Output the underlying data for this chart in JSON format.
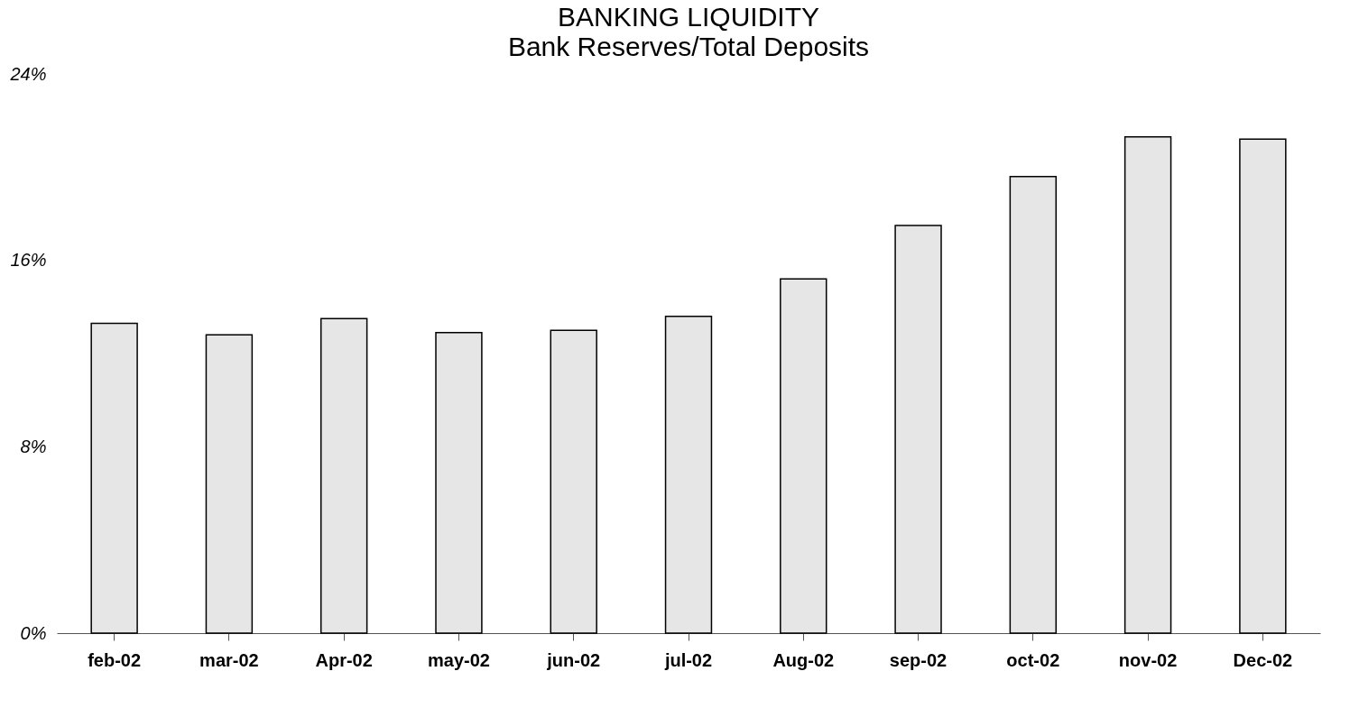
{
  "chart_data": {
    "type": "bar",
    "title": "BANKING LIQUIDITY",
    "subtitle": "Bank Reserves/Total Deposits",
    "categories": [
      "feb-02",
      "mar-02",
      "Apr-02",
      "may-02",
      "jun-02",
      "jul-02",
      "Aug-02",
      "sep-02",
      "oct-02",
      "nov-02",
      "Dec-02"
    ],
    "values": [
      13.3,
      12.8,
      13.5,
      12.9,
      13.0,
      13.6,
      15.2,
      17.5,
      19.6,
      21.3,
      21.2
    ],
    "color": "#e6e6e6",
    "ylim": [
      0,
      24
    ],
    "yticks": [
      {
        "value": 0,
        "label": "0%"
      },
      {
        "value": 8,
        "label": "8%"
      },
      {
        "value": 16,
        "label": "16%"
      },
      {
        "value": 24,
        "label": "24%"
      }
    ],
    "grid": false
  }
}
